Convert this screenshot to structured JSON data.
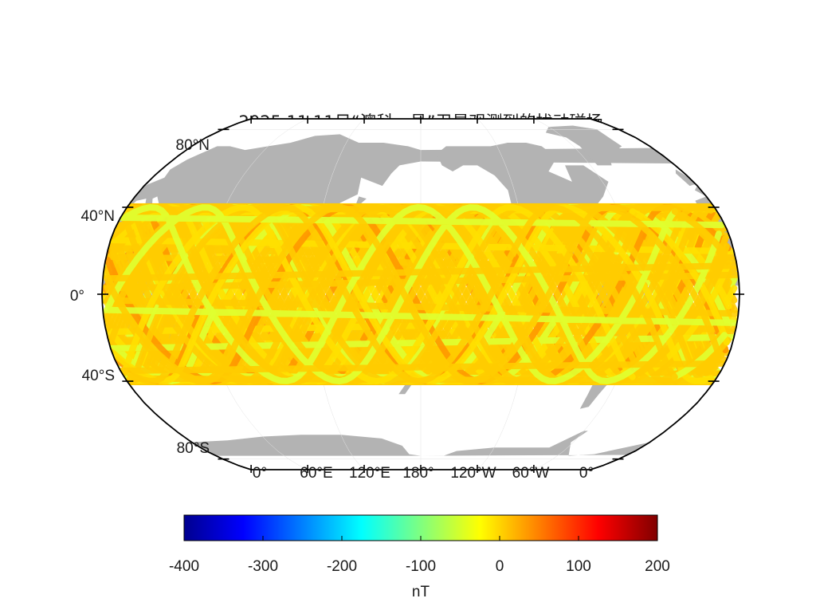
{
  "title": "2025.11.11日“澳科一号”卫星观测到的扰动磁场",
  "map": {
    "projection": "robinson",
    "central_meridian": 180,
    "lat_ticks": [
      "80°N",
      "40°N",
      "0°",
      "40°S",
      "80°S"
    ],
    "lon_ticks": [
      "0°",
      "60°E",
      "120°E",
      "180°",
      "120°W",
      "60°W",
      "0°"
    ],
    "land_color": "#b3b3b3",
    "orbit_lat_limit": 40
  },
  "colorbar": {
    "colormap": "jet",
    "min": -400,
    "max": 200,
    "ticks": [
      "-400",
      "-300",
      "-200",
      "-100",
      "0",
      "100",
      "200"
    ],
    "unit": "nT"
  },
  "colors": {
    "track_main": "#ffcc00",
    "track_positive": "#ff9900",
    "track_negative": "#e0ff30",
    "frame": "#000000"
  }
}
